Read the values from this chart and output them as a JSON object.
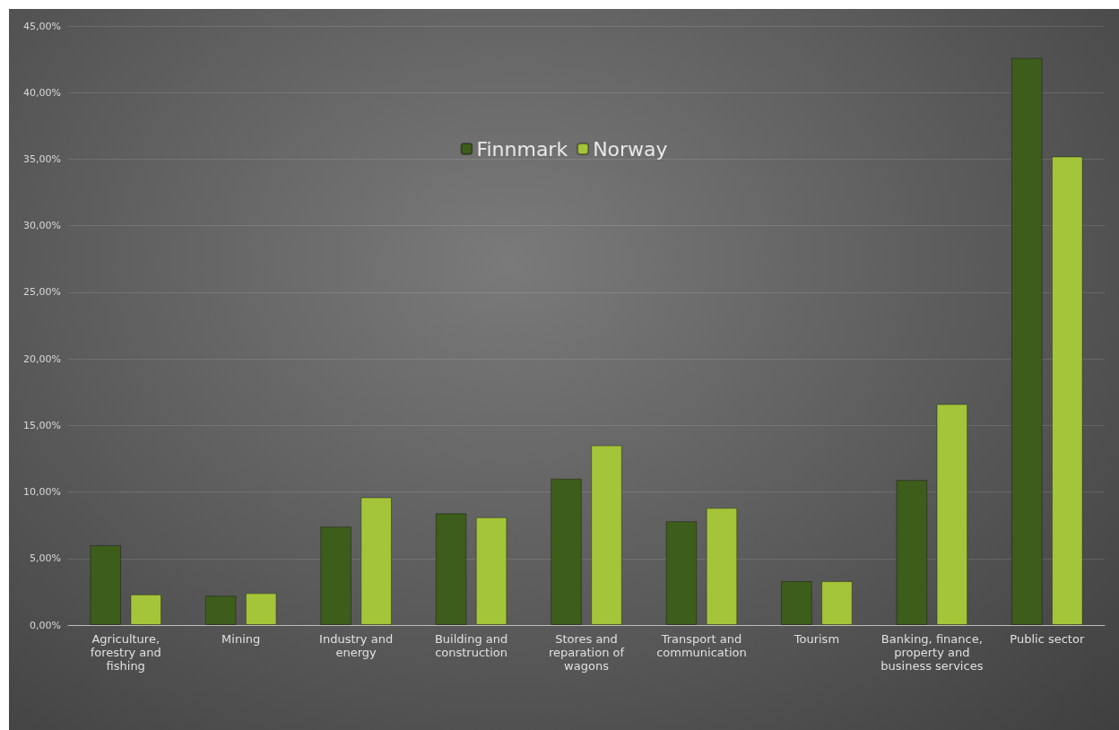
{
  "chart_data": {
    "type": "bar",
    "categories": [
      "Agriculture,\nforestry and\nfishing",
      "Mining",
      "Industry and\nenergy",
      "Building and\nconstruction",
      "Stores and\nreparation of\nwagons",
      "Transport and\ncommunication",
      "Tourism",
      "Banking, finance,\nproperty and\nbusiness services",
      "Public sector"
    ],
    "series": [
      {
        "name": "Finnmark",
        "color": "#3d5e1a",
        "values": [
          6.0,
          2.2,
          7.4,
          8.4,
          11.0,
          7.8,
          3.3,
          10.9,
          42.6
        ]
      },
      {
        "name": "Norway",
        "color": "#a4c439",
        "values": [
          2.3,
          2.4,
          9.6,
          8.1,
          13.5,
          8.8,
          3.3,
          16.6,
          35.2
        ]
      }
    ],
    "ylim": [
      0,
      45
    ],
    "yticks": [
      {
        "value": 0,
        "label": "0,00%"
      },
      {
        "value": 5,
        "label": "5,00%"
      },
      {
        "value": 10,
        "label": "10,00%"
      },
      {
        "value": 15,
        "label": "15,00%"
      },
      {
        "value": 20,
        "label": "20,00%"
      },
      {
        "value": 25,
        "label": "25,00%"
      },
      {
        "value": 30,
        "label": "30,00%"
      },
      {
        "value": 35,
        "label": "35,00%"
      },
      {
        "value": 40,
        "label": "40,00%"
      },
      {
        "value": 45,
        "label": "45,00%"
      }
    ],
    "grid": "y",
    "legend": "top"
  }
}
